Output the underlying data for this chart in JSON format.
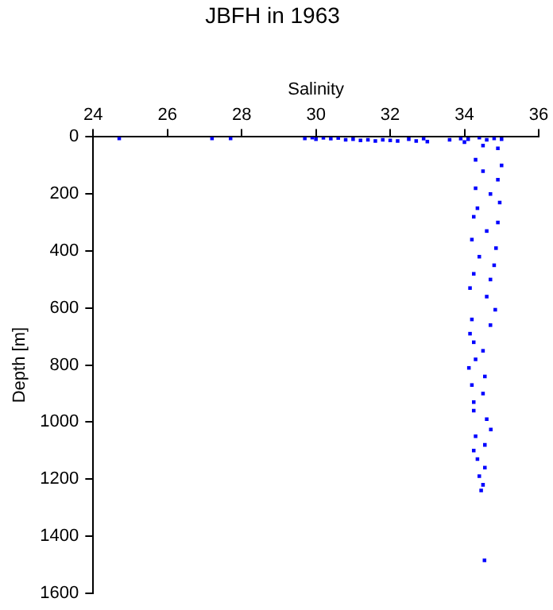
{
  "chart_data": {
    "type": "scatter",
    "title": "JBFH in 1963",
    "xlabel": "Salinity",
    "ylabel": "Depth [m]",
    "xlim": [
      24,
      36
    ],
    "xticks": [
      24,
      26,
      28,
      30,
      32,
      34,
      36
    ],
    "ylim": [
      1600,
      0
    ],
    "yticks": [
      0,
      200,
      400,
      600,
      800,
      1000,
      1200,
      1400,
      1600
    ],
    "grid": false,
    "legend": false,
    "marker": "square",
    "series": [
      {
        "color": "#0000ff",
        "x": [
          24.7,
          27.2,
          27.7,
          29.7,
          29.9,
          30.0,
          30.2,
          30.4,
          30.6,
          30.8,
          31.0,
          31.2,
          31.4,
          31.6,
          31.8,
          32.0,
          32.2,
          32.5,
          32.7,
          32.9,
          33.0,
          33.6,
          33.9,
          34.0,
          34.1,
          34.4,
          34.6,
          34.8,
          35.0,
          34.5,
          34.9,
          34.3,
          35.0,
          34.5,
          34.9,
          34.3,
          34.7,
          34.95,
          34.35,
          34.25,
          34.9,
          34.6,
          34.2,
          34.85,
          34.4,
          34.8,
          34.25,
          34.7,
          34.15,
          34.6,
          34.83,
          34.2,
          34.7,
          34.15,
          34.25,
          34.5,
          34.3,
          34.12,
          34.55,
          34.2,
          34.5,
          34.25,
          34.25,
          34.6,
          34.71,
          34.3,
          34.55,
          34.25,
          34.35,
          34.55,
          34.4,
          34.5,
          34.45,
          34.54
        ],
        "values": [
          5,
          5,
          5,
          5,
          2,
          8,
          3,
          6,
          4,
          10,
          8,
          12,
          10,
          14,
          10,
          12,
          14,
          8,
          14,
          6,
          16,
          10,
          6,
          18,
          8,
          2,
          10,
          5,
          8,
          30,
          40,
          80,
          100,
          120,
          150,
          180,
          200,
          230,
          250,
          280,
          300,
          330,
          360,
          390,
          420,
          450,
          480,
          500,
          530,
          560,
          606,
          640,
          660,
          690,
          720,
          750,
          780,
          810,
          840,
          870,
          900,
          930,
          960,
          990,
          1026,
          1050,
          1080,
          1100,
          1130,
          1160,
          1190,
          1220,
          1240,
          1485
        ]
      }
    ]
  }
}
